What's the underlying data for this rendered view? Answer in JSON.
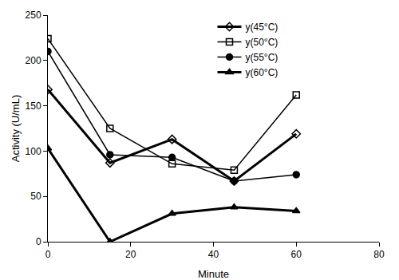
{
  "chart_data": {
    "type": "line",
    "x_label": "Minute",
    "y_label": "Activity (U/mL)",
    "x": [
      0,
      15,
      30,
      45,
      60
    ],
    "series": [
      {
        "name": "y(45°C)",
        "color": "#000000",
        "marker": "diamond-open",
        "line_style": "solid",
        "values": [
          168,
          87,
          113,
          67,
          119
        ]
      },
      {
        "name": "y(50°C)",
        "color": "#000000",
        "marker": "square-open",
        "line_style": "solid",
        "values": [
          224,
          125,
          86,
          79,
          162
        ]
      },
      {
        "name": "y(55°C)",
        "color": "#000000",
        "marker": "circle",
        "line_style": "solid",
        "values": [
          210,
          96,
          93,
          67,
          74
        ]
      },
      {
        "name": "y(60°C)",
        "color": "#000000",
        "marker": "triangle-up",
        "line_style": "solid",
        "values": [
          103,
          0,
          31,
          38,
          34
        ]
      }
    ],
    "xlim": [
      0,
      80
    ],
    "xticks": [
      0,
      20,
      40,
      60,
      80
    ],
    "ylim": [
      0,
      250
    ],
    "yticks": [
      0,
      50,
      100,
      150,
      200,
      250
    ],
    "grid": false,
    "legend": "top right"
  }
}
